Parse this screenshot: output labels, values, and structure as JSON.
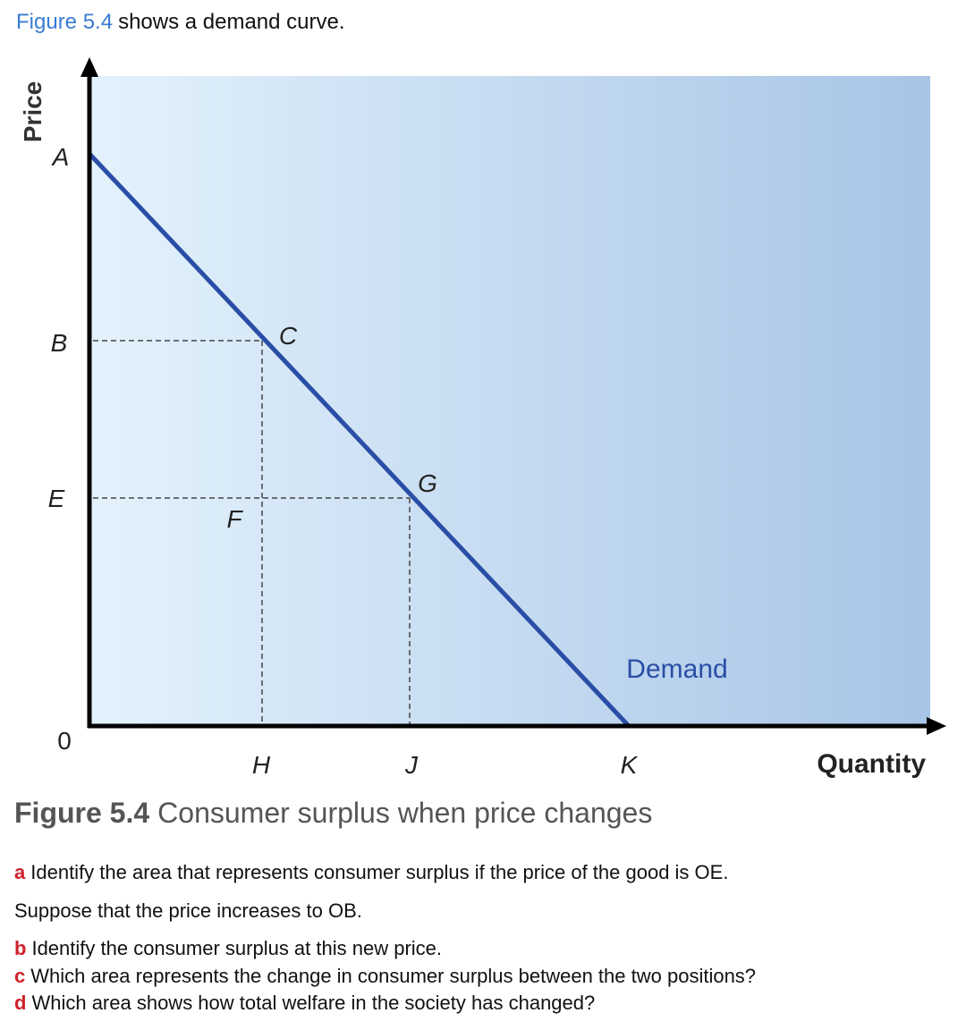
{
  "intro": {
    "link": "Figure 5.4",
    "text": "shows a demand curve."
  },
  "figure": {
    "axis_labels": {
      "y": "Price",
      "x": "Quantity"
    },
    "origin": "0",
    "price_labels": [
      "A",
      "B",
      "E"
    ],
    "point_labels": [
      "C",
      "G",
      "F"
    ],
    "quantity_labels": [
      "H",
      "J",
      "K"
    ],
    "curve_label": "Demand"
  },
  "caption": {
    "number": "Figure 5.4",
    "text": "Consumer surplus when price changes"
  },
  "questions": [
    {
      "letter": "a",
      "text": "Identify the area that represents consumer surplus if the price of the good is OE."
    },
    {
      "letter": "b",
      "text": "Identify the consumer surplus at this new price."
    },
    {
      "letter": "c",
      "text": "Which area represents the change in consumer surplus between the two positions?"
    },
    {
      "letter": "d",
      "text": "Which area shows how total welfare in the society has changed?"
    }
  ],
  "note": "Suppose that the price increases to OB."
}
